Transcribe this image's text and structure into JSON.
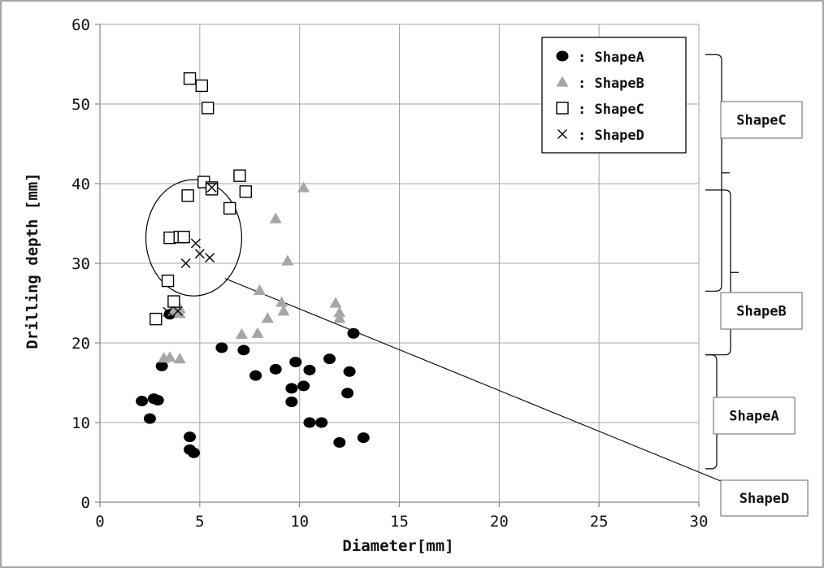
{
  "chart_data": {
    "type": "scatter",
    "title": "",
    "xlabel": "Diameter[mm]",
    "ylabel": "Drilling depth [mm]",
    "xlim": [
      0,
      30
    ],
    "ylim": [
      0,
      60
    ],
    "x_ticks": [
      0,
      5,
      10,
      15,
      20,
      25,
      30
    ],
    "y_ticks": [
      0,
      10,
      20,
      30,
      40,
      50,
      60
    ],
    "grid": true,
    "legend_position": "top-right",
    "series": [
      {
        "name": ": ShapeA",
        "marker": "filled-circle",
        "color": "#000000",
        "points": [
          [
            2.1,
            12.7
          ],
          [
            2.5,
            10.5
          ],
          [
            2.7,
            13.0
          ],
          [
            2.9,
            12.8
          ],
          [
            3.1,
            17.1
          ],
          [
            3.5,
            23.6
          ],
          [
            4.5,
            8.2
          ],
          [
            4.5,
            6.6
          ],
          [
            4.7,
            6.2
          ],
          [
            6.1,
            19.4
          ],
          [
            7.2,
            19.1
          ],
          [
            7.8,
            15.9
          ],
          [
            8.8,
            16.7
          ],
          [
            9.6,
            14.3
          ],
          [
            9.6,
            12.6
          ],
          [
            9.8,
            17.6
          ],
          [
            10.2,
            14.6
          ],
          [
            10.5,
            16.6
          ],
          [
            10.5,
            10.0
          ],
          [
            11.1,
            10.0
          ],
          [
            11.5,
            18.0
          ],
          [
            12.0,
            7.5
          ],
          [
            12.4,
            13.7
          ],
          [
            12.5,
            16.4
          ],
          [
            12.7,
            21.2
          ],
          [
            13.2,
            8.1
          ]
        ]
      },
      {
        "name": ": ShapeB",
        "marker": "filled-triangle",
        "color": "#a6a6a6",
        "points": [
          [
            3.2,
            18.1
          ],
          [
            3.5,
            18.2
          ],
          [
            3.7,
            24.0
          ],
          [
            4.0,
            18.0
          ],
          [
            4.0,
            23.7
          ],
          [
            4.0,
            24.3
          ],
          [
            7.1,
            21.1
          ],
          [
            7.9,
            21.2
          ],
          [
            8.0,
            26.6
          ],
          [
            8.4,
            23.1
          ],
          [
            8.8,
            35.6
          ],
          [
            9.1,
            25.1
          ],
          [
            9.2,
            24.0
          ],
          [
            9.4,
            30.3
          ],
          [
            10.2,
            39.5
          ],
          [
            11.8,
            25.0
          ],
          [
            12.0,
            23.8
          ],
          [
            12.0,
            23.1
          ]
        ]
      },
      {
        "name": ": ShapeC",
        "marker": "open-square",
        "color": "#000000",
        "points": [
          [
            2.8,
            23.0
          ],
          [
            3.4,
            27.8
          ],
          [
            3.5,
            33.2
          ],
          [
            3.7,
            25.2
          ],
          [
            4.0,
            33.3
          ],
          [
            4.2,
            33.3
          ],
          [
            4.4,
            38.5
          ],
          [
            4.5,
            53.2
          ],
          [
            5.1,
            52.3
          ],
          [
            5.2,
            40.2
          ],
          [
            5.4,
            49.5
          ],
          [
            5.6,
            39.5
          ],
          [
            5.6,
            39.3
          ],
          [
            6.5,
            36.9
          ],
          [
            7.0,
            41.0
          ],
          [
            7.3,
            39.0
          ]
        ]
      },
      {
        "name": ": ShapeD",
        "marker": "cross",
        "color": "#000000",
        "points": [
          [
            4.3,
            30.0
          ],
          [
            4.8,
            32.5
          ],
          [
            5.0,
            31.2
          ],
          [
            5.5,
            30.7
          ],
          [
            5.6,
            39.5
          ],
          [
            3.4,
            23.9
          ],
          [
            3.9,
            24.0
          ]
        ]
      }
    ],
    "annotations": [
      {
        "label": "ShapeA",
        "range": [
          4.2,
          18.5
        ]
      },
      {
        "label": "ShapeB",
        "range": [
          18.5,
          39.2
        ]
      },
      {
        "label": "ShapeC",
        "range": [
          26.5,
          56.2
        ]
      },
      {
        "label": "ShapeD",
        "target_point": [
          6.5,
          28.0
        ]
      }
    ],
    "highlight_ellipse": {
      "center": [
        4.7,
        33.2
      ],
      "radius": [
        2.4,
        7.3
      ]
    }
  }
}
